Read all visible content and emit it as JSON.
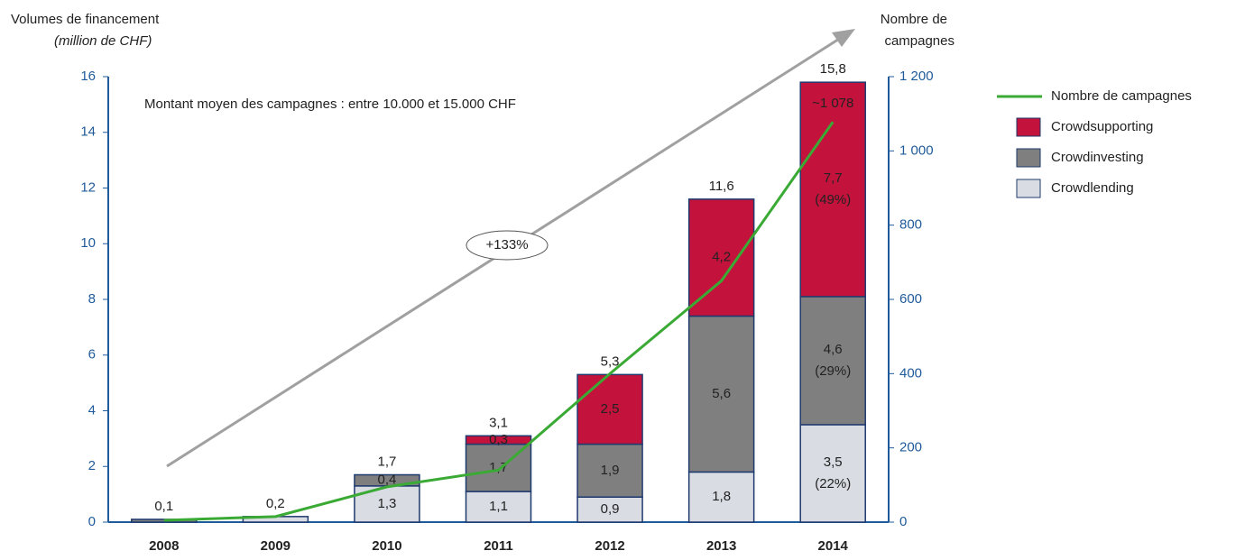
{
  "chart_data": {
    "type": "bar",
    "y_label": "Volumes de financement",
    "y_label_sub": "(million de CHF)",
    "y2_label": "Nombre de",
    "y2_label_sub": "campagnes",
    "annotation": "Montant moyen des campagnes : entre 10.000 et 15.000 CHF",
    "growth_label": "+133%",
    "categories": [
      "2008",
      "2009",
      "2010",
      "2011",
      "2012",
      "2013",
      "2014"
    ],
    "total_labels": [
      "0,1",
      "0,2",
      "1,7",
      "3,1",
      "5,3",
      "11,6",
      "15,8"
    ],
    "series": [
      {
        "name": "Crowdlending",
        "color": "#d9dce3",
        "label_color": "#1f3a6e",
        "values": [
          0,
          0.2,
          1.3,
          1.1,
          0.9,
          1.8,
          3.5
        ],
        "value_labels": [
          null,
          null,
          "1,3",
          "1,1",
          "0,9",
          "1,8",
          "3,5"
        ],
        "share_labels": [
          null,
          null,
          null,
          null,
          null,
          null,
          "(22%)"
        ]
      },
      {
        "name": "Crowdinvesting",
        "color": "#7f7f7f",
        "label_color": "#ffffff",
        "values": [
          0.1,
          0,
          0.4,
          1.7,
          1.9,
          5.6,
          4.6
        ],
        "value_labels": [
          null,
          null,
          "0,4",
          "1,7",
          "1,9",
          "5,6",
          "4,6"
        ],
        "share_labels": [
          null,
          null,
          null,
          null,
          null,
          null,
          "(29%)"
        ]
      },
      {
        "name": "Crowdsupporting",
        "color": "#c3123b",
        "label_color": "#ffffff",
        "values": [
          0,
          0,
          0,
          0.3,
          2.5,
          4.2,
          7.7
        ],
        "value_labels": [
          null,
          null,
          null,
          "0,3",
          "2,5",
          "4,2",
          "7,7"
        ],
        "share_labels": [
          null,
          null,
          null,
          null,
          null,
          null,
          "(49%)"
        ]
      },
      {
        "name": "Nombre de campagnes",
        "color": "#3aaa35",
        "type": "line",
        "axis": "y2",
        "values": [
          5,
          15,
          95,
          140,
          400,
          650,
          1078
        ],
        "value_labels": [
          null,
          null,
          null,
          null,
          null,
          null,
          "~1 078"
        ]
      }
    ],
    "ylim": [
      0,
      16
    ],
    "yticks": [
      0,
      2,
      4,
      6,
      8,
      10,
      12,
      14,
      16
    ],
    "y2lim": [
      0,
      1200
    ],
    "y2ticks": [
      0,
      200,
      400,
      600,
      800,
      {
        "value": 1000,
        "label": "1 000"
      },
      {
        "value": 1200,
        "label": "1 200"
      }
    ],
    "legend": "right"
  }
}
